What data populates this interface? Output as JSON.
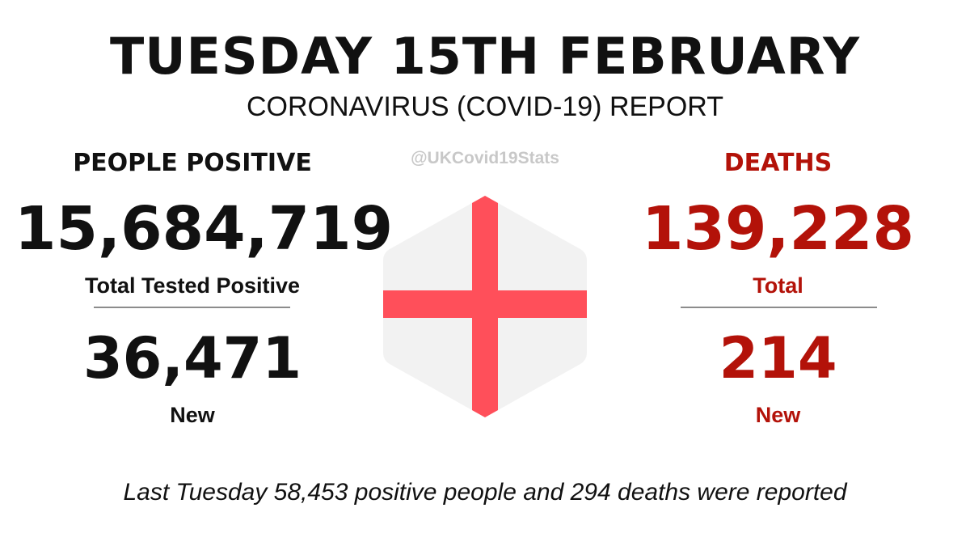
{
  "header": {
    "title": "TUESDAY 15TH FEBRUARY",
    "subtitle": "CORONAVIRUS (COVID-19) REPORT",
    "handle": "@UKCovid19Stats"
  },
  "positive": {
    "heading": "PEOPLE POSITIVE",
    "total_value": "15,684,719",
    "total_label": "Total Tested Positive",
    "new_value": "36,471",
    "new_label": "New"
  },
  "deaths": {
    "heading": "DEATHS",
    "total_value": "139,228",
    "total_label": "Total",
    "new_value": "214",
    "new_label": "New"
  },
  "flag": {
    "icon": "england-flag-hexagon-icon",
    "background_color": "#f2f2f2",
    "cross_color": "#ff4f5a"
  },
  "footer": {
    "text": "Last Tuesday 58,453 positive people and 294 deaths were reported"
  },
  "colors": {
    "deaths_red": "#b31209",
    "text_black": "#111111",
    "handle_grey": "#c8c8c8",
    "divider_grey": "#8c8c8c"
  }
}
